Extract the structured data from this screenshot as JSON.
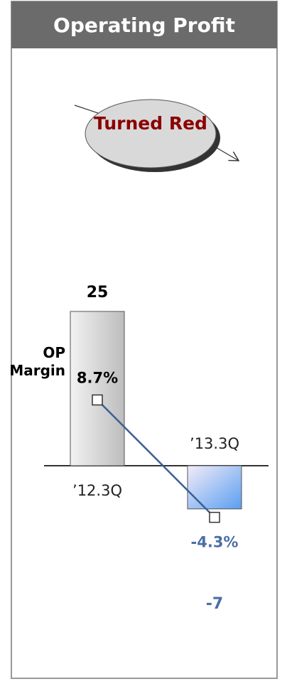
{
  "chart_data": {
    "type": "bar_line",
    "title": "Operating Profit",
    "annotation": "Turned Red",
    "line_label": "OP Margin",
    "categories": [
      "’12.3Q",
      "’13.3Q"
    ],
    "series": [
      {
        "type": "bar",
        "colors": [
          "#c8c8c8",
          "#5a9ef0"
        ],
        "label_colors": [
          "#000000",
          "#4a6fa5"
        ],
        "values": [
          25,
          -7
        ]
      },
      {
        "type": "line",
        "axis": "y2",
        "color": "#3a5f95",
        "label_colors": [
          "#000000",
          "#4a6fa5"
        ],
        "values": [
          8.7,
          -4.3
        ],
        "value_labels": [
          "8.7%",
          "-4.3%"
        ]
      }
    ]
  }
}
